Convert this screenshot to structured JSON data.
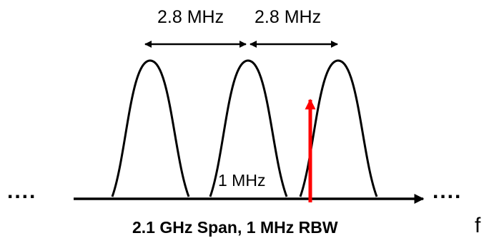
{
  "diagram": {
    "spacing_labels": [
      "2.8 MHz",
      "2.8 MHz"
    ],
    "rbw_label": "1 MHz",
    "left_ellipsis": "....",
    "right_ellipsis": "....",
    "axis_label": "f",
    "caption": "2.1 GHz Span, 1 MHz RBW",
    "channel_count": 3,
    "colors": {
      "line": "#000000",
      "marker": "#ff0000",
      "background": "#ffffff"
    }
  }
}
